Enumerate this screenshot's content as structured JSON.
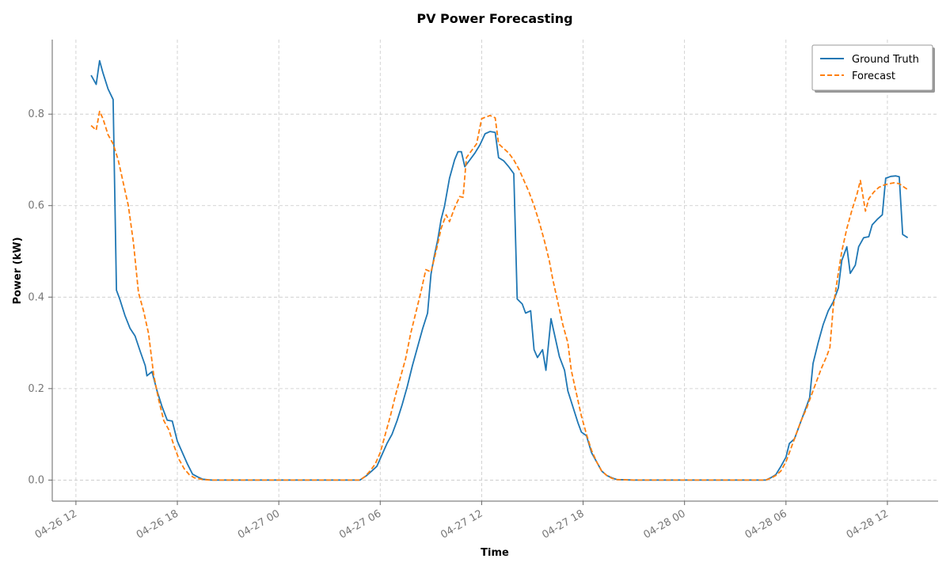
{
  "chart_data": {
    "type": "line",
    "title": "PV Power Forecasting",
    "xlabel": "Time",
    "ylabel": "Power (kW)",
    "x_range_hours": [
      -1.4,
      51.0
    ],
    "ylim": [
      -0.046,
      0.963
    ],
    "grid": true,
    "legend_placement": "top-right",
    "x_ticks": [
      {
        "label": "04-26 12",
        "hours": 0
      },
      {
        "label": "04-26 18",
        "hours": 6
      },
      {
        "label": "04-27 00",
        "hours": 12
      },
      {
        "label": "04-27 06",
        "hours": 18
      },
      {
        "label": "04-27 12",
        "hours": 24
      },
      {
        "label": "04-27 18",
        "hours": 30
      },
      {
        "label": "04-28 00",
        "hours": 36
      },
      {
        "label": "04-28 06",
        "hours": 42
      },
      {
        "label": "04-28 12",
        "hours": 48
      }
    ],
    "y_ticks": [
      {
        "label": "0.0",
        "value": 0.0
      },
      {
        "label": "0.2",
        "value": 0.2
      },
      {
        "label": "0.4",
        "value": 0.4
      },
      {
        "label": "0.6",
        "value": 0.6
      },
      {
        "label": "0.8",
        "value": 0.8
      }
    ],
    "series": [
      {
        "name": "Ground Truth",
        "color": "#1f77b4",
        "style": "solid",
        "points": [
          [
            0.9,
            0.885
          ],
          [
            1.2,
            0.865
          ],
          [
            1.4,
            0.917
          ],
          [
            1.6,
            0.89
          ],
          [
            1.9,
            0.855
          ],
          [
            2.2,
            0.832
          ],
          [
            2.4,
            0.415
          ],
          [
            2.6,
            0.395
          ],
          [
            2.9,
            0.36
          ],
          [
            3.2,
            0.332
          ],
          [
            3.5,
            0.315
          ],
          [
            3.8,
            0.282
          ],
          [
            4.1,
            0.25
          ],
          [
            4.2,
            0.228
          ],
          [
            4.5,
            0.237
          ],
          [
            4.8,
            0.195
          ],
          [
            5.1,
            0.16
          ],
          [
            5.4,
            0.131
          ],
          [
            5.7,
            0.129
          ],
          [
            6.0,
            0.085
          ],
          [
            6.3,
            0.06
          ],
          [
            6.6,
            0.035
          ],
          [
            6.9,
            0.013
          ],
          [
            7.2,
            0.007
          ],
          [
            7.5,
            0.002
          ],
          [
            8.0,
            0.0
          ],
          [
            9.0,
            0.0
          ],
          [
            10.0,
            0.0
          ],
          [
            12.0,
            0.0
          ],
          [
            14.0,
            0.0
          ],
          [
            16.0,
            0.0
          ],
          [
            16.8,
            0.0
          ],
          [
            17.2,
            0.01
          ],
          [
            17.5,
            0.02
          ],
          [
            17.8,
            0.03
          ],
          [
            18.1,
            0.055
          ],
          [
            18.4,
            0.08
          ],
          [
            18.7,
            0.1
          ],
          [
            19.0,
            0.13
          ],
          [
            19.3,
            0.165
          ],
          [
            19.6,
            0.205
          ],
          [
            19.9,
            0.25
          ],
          [
            20.2,
            0.29
          ],
          [
            20.5,
            0.33
          ],
          [
            20.8,
            0.365
          ],
          [
            21.0,
            0.45
          ],
          [
            21.2,
            0.49
          ],
          [
            21.4,
            0.525
          ],
          [
            21.6,
            0.57
          ],
          [
            21.8,
            0.598
          ],
          [
            22.1,
            0.66
          ],
          [
            22.4,
            0.7
          ],
          [
            22.6,
            0.718
          ],
          [
            22.8,
            0.718
          ],
          [
            23.0,
            0.685
          ],
          [
            23.3,
            0.7
          ],
          [
            23.6,
            0.715
          ],
          [
            23.9,
            0.733
          ],
          [
            24.2,
            0.757
          ],
          [
            24.5,
            0.762
          ],
          [
            24.8,
            0.76
          ],
          [
            25.0,
            0.705
          ],
          [
            25.3,
            0.698
          ],
          [
            25.6,
            0.685
          ],
          [
            25.9,
            0.67
          ],
          [
            26.1,
            0.396
          ],
          [
            26.4,
            0.385
          ],
          [
            26.6,
            0.365
          ],
          [
            26.9,
            0.37
          ],
          [
            27.1,
            0.285
          ],
          [
            27.3,
            0.268
          ],
          [
            27.6,
            0.285
          ],
          [
            27.8,
            0.24
          ],
          [
            28.1,
            0.353
          ],
          [
            28.3,
            0.32
          ],
          [
            28.6,
            0.27
          ],
          [
            28.9,
            0.24
          ],
          [
            29.1,
            0.195
          ],
          [
            29.4,
            0.16
          ],
          [
            29.7,
            0.125
          ],
          [
            29.9,
            0.105
          ],
          [
            30.2,
            0.097
          ],
          [
            30.5,
            0.06
          ],
          [
            30.8,
            0.04
          ],
          [
            31.1,
            0.02
          ],
          [
            31.4,
            0.01
          ],
          [
            31.7,
            0.005
          ],
          [
            32.0,
            0.001
          ],
          [
            33.0,
            0.0
          ],
          [
            35.0,
            0.0
          ],
          [
            38.0,
            0.0
          ],
          [
            40.0,
            0.0
          ],
          [
            40.8,
            0.0
          ],
          [
            41.1,
            0.005
          ],
          [
            41.4,
            0.012
          ],
          [
            41.7,
            0.03
          ],
          [
            42.0,
            0.05
          ],
          [
            42.2,
            0.08
          ],
          [
            42.5,
            0.09
          ],
          [
            42.8,
            0.12
          ],
          [
            43.1,
            0.15
          ],
          [
            43.4,
            0.18
          ],
          [
            43.6,
            0.255
          ],
          [
            43.9,
            0.3
          ],
          [
            44.2,
            0.34
          ],
          [
            44.5,
            0.37
          ],
          [
            44.8,
            0.39
          ],
          [
            45.1,
            0.42
          ],
          [
            45.3,
            0.48
          ],
          [
            45.6,
            0.51
          ],
          [
            45.8,
            0.452
          ],
          [
            46.1,
            0.47
          ],
          [
            46.3,
            0.51
          ],
          [
            46.6,
            0.53
          ],
          [
            46.9,
            0.532
          ],
          [
            47.1,
            0.558
          ],
          [
            47.4,
            0.57
          ],
          [
            47.7,
            0.58
          ],
          [
            47.9,
            0.66
          ],
          [
            48.2,
            0.664
          ],
          [
            48.5,
            0.665
          ],
          [
            48.7,
            0.663
          ],
          [
            48.9,
            0.537
          ],
          [
            49.2,
            0.53
          ]
        ]
      },
      {
        "name": "Forecast",
        "color": "#ff7f0e",
        "style": "dashed",
        "points": [
          [
            0.9,
            0.775
          ],
          [
            1.2,
            0.765
          ],
          [
            1.4,
            0.806
          ],
          [
            1.6,
            0.79
          ],
          [
            1.9,
            0.755
          ],
          [
            2.2,
            0.735
          ],
          [
            2.5,
            0.7
          ],
          [
            2.8,
            0.65
          ],
          [
            3.1,
            0.6
          ],
          [
            3.4,
            0.52
          ],
          [
            3.7,
            0.41
          ],
          [
            4.0,
            0.37
          ],
          [
            4.3,
            0.32
          ],
          [
            4.6,
            0.23
          ],
          [
            4.9,
            0.175
          ],
          [
            5.2,
            0.13
          ],
          [
            5.5,
            0.11
          ],
          [
            5.8,
            0.075
          ],
          [
            6.1,
            0.045
          ],
          [
            6.4,
            0.025
          ],
          [
            6.7,
            0.012
          ],
          [
            7.0,
            0.005
          ],
          [
            7.5,
            0.001
          ],
          [
            8.0,
            0.0
          ],
          [
            10.0,
            0.0
          ],
          [
            12.0,
            0.0
          ],
          [
            14.0,
            0.0
          ],
          [
            16.0,
            0.0
          ],
          [
            16.8,
            0.0
          ],
          [
            17.1,
            0.008
          ],
          [
            17.4,
            0.02
          ],
          [
            17.7,
            0.035
          ],
          [
            18.0,
            0.06
          ],
          [
            18.3,
            0.1
          ],
          [
            18.6,
            0.14
          ],
          [
            18.9,
            0.185
          ],
          [
            19.2,
            0.225
          ],
          [
            19.5,
            0.265
          ],
          [
            19.8,
            0.32
          ],
          [
            20.1,
            0.365
          ],
          [
            20.4,
            0.41
          ],
          [
            20.7,
            0.46
          ],
          [
            21.0,
            0.455
          ],
          [
            21.3,
            0.5
          ],
          [
            21.6,
            0.55
          ],
          [
            21.9,
            0.58
          ],
          [
            22.1,
            0.565
          ],
          [
            22.4,
            0.595
          ],
          [
            22.7,
            0.62
          ],
          [
            22.9,
            0.618
          ],
          [
            23.1,
            0.705
          ],
          [
            23.4,
            0.72
          ],
          [
            23.7,
            0.735
          ],
          [
            24.0,
            0.79
          ],
          [
            24.2,
            0.793
          ],
          [
            24.5,
            0.797
          ],
          [
            24.8,
            0.792
          ],
          [
            25.0,
            0.735
          ],
          [
            25.3,
            0.725
          ],
          [
            25.6,
            0.715
          ],
          [
            25.9,
            0.7
          ],
          [
            26.2,
            0.68
          ],
          [
            26.5,
            0.655
          ],
          [
            26.8,
            0.63
          ],
          [
            27.1,
            0.6
          ],
          [
            27.4,
            0.565
          ],
          [
            27.7,
            0.525
          ],
          [
            28.0,
            0.48
          ],
          [
            28.2,
            0.44
          ],
          [
            28.5,
            0.39
          ],
          [
            28.8,
            0.34
          ],
          [
            29.1,
            0.3
          ],
          [
            29.3,
            0.24
          ],
          [
            29.6,
            0.19
          ],
          [
            29.9,
            0.14
          ],
          [
            30.2,
            0.1
          ],
          [
            30.5,
            0.065
          ],
          [
            30.8,
            0.04
          ],
          [
            31.1,
            0.02
          ],
          [
            31.4,
            0.01
          ],
          [
            31.7,
            0.004
          ],
          [
            32.0,
            0.001
          ],
          [
            33.0,
            0.0
          ],
          [
            35.0,
            0.0
          ],
          [
            38.0,
            0.0
          ],
          [
            40.0,
            0.0
          ],
          [
            40.8,
            0.0
          ],
          [
            41.1,
            0.004
          ],
          [
            41.4,
            0.01
          ],
          [
            41.7,
            0.02
          ],
          [
            42.0,
            0.04
          ],
          [
            42.3,
            0.07
          ],
          [
            42.6,
            0.1
          ],
          [
            42.9,
            0.13
          ],
          [
            43.2,
            0.155
          ],
          [
            43.5,
            0.185
          ],
          [
            43.8,
            0.215
          ],
          [
            44.1,
            0.245
          ],
          [
            44.4,
            0.27
          ],
          [
            44.6,
            0.29
          ],
          [
            44.8,
            0.38
          ],
          [
            45.0,
            0.43
          ],
          [
            45.3,
            0.5
          ],
          [
            45.6,
            0.55
          ],
          [
            45.9,
            0.59
          ],
          [
            46.2,
            0.625
          ],
          [
            46.4,
            0.655
          ],
          [
            46.7,
            0.588
          ],
          [
            46.9,
            0.615
          ],
          [
            47.2,
            0.63
          ],
          [
            47.5,
            0.64
          ],
          [
            47.8,
            0.645
          ],
          [
            48.1,
            0.648
          ],
          [
            48.4,
            0.65
          ],
          [
            48.7,
            0.648
          ],
          [
            49.0,
            0.64
          ],
          [
            49.2,
            0.635
          ]
        ]
      }
    ]
  }
}
